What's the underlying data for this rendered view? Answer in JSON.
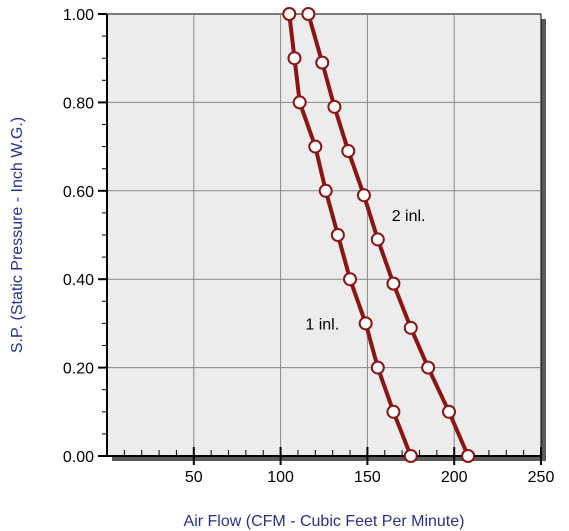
{
  "chart_data": {
    "type": "line",
    "xlabel": "Air Flow (CFM - Cubic Feet Per Minute)",
    "ylabel": "S.P. (Static Pressure - Inch W.G.)",
    "xlim": [
      0,
      250
    ],
    "ylim": [
      0,
      1.0
    ],
    "x_ticks": [
      50,
      100,
      150,
      200,
      250
    ],
    "x_tick_labels": [
      "50",
      "100",
      "150",
      "200",
      "250"
    ],
    "y_ticks": [
      0,
      0.2,
      0.4,
      0.6,
      0.8,
      1.0
    ],
    "y_tick_labels": [
      "0.00",
      "0.20",
      "0.40",
      "0.60",
      "0.80",
      "1.00"
    ],
    "grid": true,
    "series": [
      {
        "name": "1 inl.",
        "points": [
          {
            "x": 105,
            "y": 1.0
          },
          {
            "x": 108,
            "y": 0.9
          },
          {
            "x": 111,
            "y": 0.8
          },
          {
            "x": 120,
            "y": 0.7
          },
          {
            "x": 126,
            "y": 0.6
          },
          {
            "x": 133,
            "y": 0.5
          },
          {
            "x": 140,
            "y": 0.4
          },
          {
            "x": 149,
            "y": 0.3
          },
          {
            "x": 156,
            "y": 0.2
          },
          {
            "x": 165,
            "y": 0.1
          },
          {
            "x": 175,
            "y": 0.0
          }
        ]
      },
      {
        "name": "2 inl.",
        "points": [
          {
            "x": 116,
            "y": 1.0
          },
          {
            "x": 124,
            "y": 0.89
          },
          {
            "x": 131,
            "y": 0.79
          },
          {
            "x": 139,
            "y": 0.69
          },
          {
            "x": 148,
            "y": 0.59
          },
          {
            "x": 156,
            "y": 0.49
          },
          {
            "x": 165,
            "y": 0.39
          },
          {
            "x": 175,
            "y": 0.29
          },
          {
            "x": 185,
            "y": 0.2
          },
          {
            "x": 197,
            "y": 0.1
          },
          {
            "x": 208,
            "y": 0.0
          }
        ]
      }
    ]
  },
  "colors": {
    "line": "#8b1414",
    "marker_fill": "#ffffff",
    "plot_bg": "#ececec",
    "grid": "#888888",
    "axis_title": "#2b2f8c",
    "shadow": "#5a5a5a"
  }
}
